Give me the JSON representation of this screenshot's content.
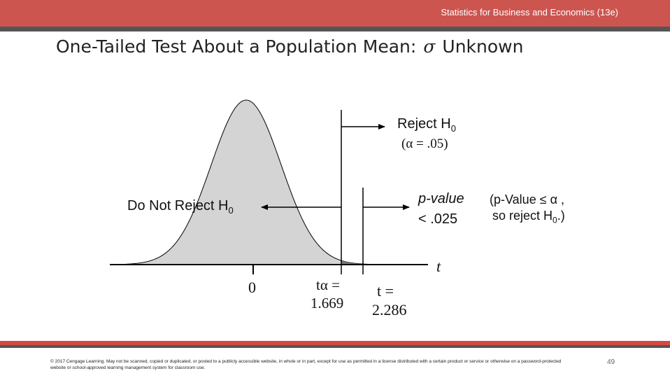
{
  "header": {
    "course_title": "Statistics for Business and Economics (13e)"
  },
  "slide": {
    "title_prefix": "One-Tailed Test About a Population Mean:",
    "title_symbol": "σ",
    "title_suffix": "Unknown"
  },
  "diagram": {
    "reject_label": "Reject H",
    "reject_sub": "0",
    "alpha_label": "(α = .05)",
    "do_not_reject_label": "Do Not Reject H",
    "do_not_reject_sub": "0",
    "pvalue_label_line1": "p-value",
    "pvalue_label_line2": "< .025",
    "conclusion_line1": "(p-Value ≤ α ,",
    "conclusion_line2_prefix": "so reject H",
    "conclusion_line2_sub": "0",
    "conclusion_line2_suffix": ".)",
    "axis_label": "t",
    "zero_label": "0",
    "critical_label_line1": "tα =",
    "critical_value": "1.669",
    "test_stat_label_line1": "t =",
    "test_stat_value": "2.286",
    "colors": {
      "curve_fill": "#d4d4d4",
      "tail_fill": "#7a7a7a",
      "line": "#000000"
    }
  },
  "footer": {
    "copyright": "© 2017 Cengage Learning. May not be scanned, copied or duplicated, or posted to a publicly accessible website, in whole or in part, except for use as permitted in a license distributed with a certain product or service or otherwise on a password-protected website or school-approved learning management system for classroom use.",
    "page_number": "49"
  }
}
